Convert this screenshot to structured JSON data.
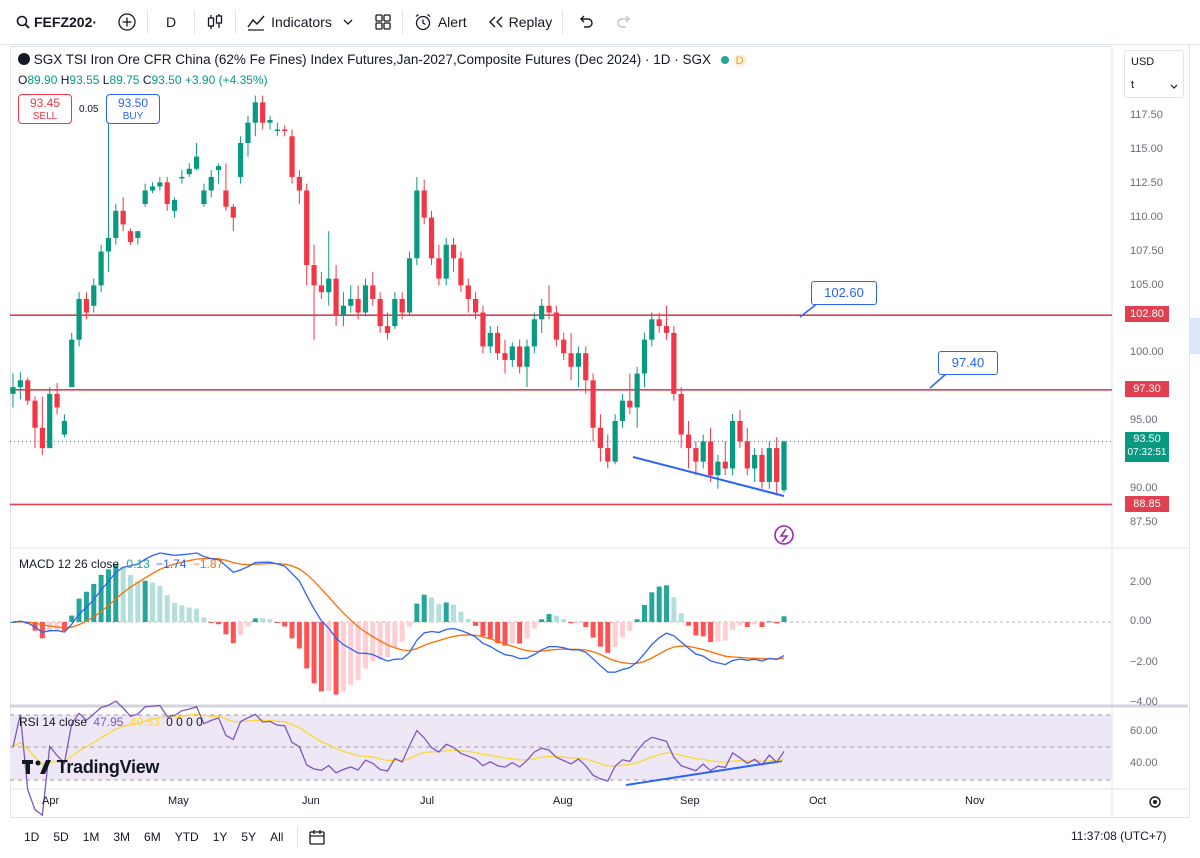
{
  "toolbar": {
    "symbol": "FEFZ202·",
    "interval": "D",
    "indicators_label": "Indicators",
    "alert_label": "Alert",
    "replay_label": "Replay"
  },
  "legend": {
    "title": "SGX TSI Iron Ore CFR China (62% Fe Fines) Index Futures,Jan-2027,Composite Futures (Dec 2024) · 1D · SGX",
    "badge": "D",
    "open_label": "O",
    "open": "89.90",
    "high_label": "H",
    "high": "93.55",
    "low_label": "L",
    "low": "89.75",
    "close_label": "C",
    "close": "93.50",
    "change": "+3.90 (+4.35%)"
  },
  "trade": {
    "sell_price": "93.45",
    "sell_label": "SELL",
    "spread": "0.05",
    "buy_price": "93.50",
    "buy_label": "BUY"
  },
  "currency": {
    "value": "USD",
    "unit": "t"
  },
  "price_axis": [
    "117.50",
    "115.00",
    "112.50",
    "110.00",
    "107.50",
    "105.00",
    "100.00",
    "95.00",
    "90.00",
    "87.50"
  ],
  "levels": [
    {
      "value": 102.8,
      "label": "102.80"
    },
    {
      "value": 97.3,
      "label": "97.30"
    },
    {
      "value": 88.85,
      "label": "88.85"
    }
  ],
  "current_price": {
    "value": 93.5,
    "label": "93.50",
    "countdown": "07:32:51"
  },
  "callouts": [
    {
      "label": "102.60"
    },
    {
      "label": "97.40"
    }
  ],
  "macd": {
    "label": "MACD 12 26 close",
    "hist": "0.13",
    "macd": "−1.74",
    "signal": "−1.87",
    "axis": [
      "2.00",
      "0.00",
      "−2.00",
      "−4.00"
    ]
  },
  "rsi": {
    "label": "RSI 14 close",
    "value": "47.95",
    "ma": "40.53",
    "extra": "0 0 0 0",
    "axis": [
      "60.00",
      "40.00"
    ]
  },
  "months": [
    "Apr",
    "May",
    "Jun",
    "Jul",
    "Aug",
    "Sep",
    "Oct",
    "Nov"
  ],
  "brand": "TradingView",
  "ranges": [
    "1D",
    "5D",
    "1M",
    "3M",
    "6M",
    "YTD",
    "1Y",
    "5Y",
    "All"
  ],
  "clock": "11:37:08 (UTC+7)",
  "colors": {
    "up": "#089981",
    "down": "#f23645",
    "accent": "#2962ff",
    "level": "#e04050"
  },
  "chart_data": {
    "type": "candlestick",
    "note_series": "daily OHLC approximations",
    "candles": [
      [
        97.0,
        98.5,
        96.0,
        97.5
      ],
      [
        97.5,
        98.6,
        96.6,
        98.0
      ],
      [
        98.0,
        98.2,
        96.2,
        96.5
      ],
      [
        96.5,
        96.8,
        93.0,
        94.5
      ],
      [
        94.5,
        96.8,
        92.5,
        93.0
      ],
      [
        93.0,
        97.5,
        93.0,
        97.0
      ],
      [
        97.0,
        97.8,
        95.5,
        96.0
      ],
      [
        94.0,
        95.5,
        93.8,
        95.0
      ],
      [
        97.5,
        101.5,
        97.5,
        101.0
      ],
      [
        101.0,
        104.5,
        100.5,
        104.0
      ],
      [
        104.0,
        104.5,
        102.5,
        103.0
      ],
      [
        103.5,
        105.5,
        103.0,
        105.0
      ],
      [
        105.0,
        108.0,
        104.5,
        107.5
      ],
      [
        107.5,
        117.5,
        106.0,
        108.5
      ],
      [
        108.5,
        111.0,
        108.0,
        110.5
      ],
      [
        110.5,
        111.5,
        109.0,
        109.5
      ],
      [
        109.0,
        109.2,
        108.0,
        108.2
      ],
      [
        108.5,
        109.0,
        108.0,
        109.0
      ],
      [
        111.0,
        112.5,
        110.8,
        112.0
      ],
      [
        112.0,
        112.6,
        111.8,
        112.3
      ],
      [
        112.3,
        113.0,
        112.0,
        112.6
      ],
      [
        112.6,
        113.0,
        110.5,
        111.0
      ],
      [
        110.5,
        111.5,
        110.0,
        111.3
      ],
      [
        113.0,
        113.5,
        112.5,
        113.0
      ],
      [
        113.2,
        114.0,
        113.0,
        113.6
      ],
      [
        113.6,
        115.5,
        113.5,
        114.5
      ],
      [
        111.0,
        112.5,
        110.8,
        112.0
      ],
      [
        112.0,
        113.5,
        111.5,
        113.0
      ],
      [
        113.5,
        114.0,
        112.5,
        113.8
      ],
      [
        112.0,
        114.0,
        110.5,
        110.8
      ],
      [
        110.8,
        111.0,
        109.0,
        110.0
      ],
      [
        113.0,
        116.0,
        112.5,
        115.5
      ],
      [
        115.5,
        117.5,
        114.5,
        117.0
      ],
      [
        117.0,
        119.0,
        116.0,
        118.5
      ],
      [
        118.5,
        119.0,
        116.5,
        117.0
      ],
      [
        117.0,
        117.5,
        116.5,
        117.2
      ],
      [
        116.5,
        117.0,
        116.0,
        116.5
      ],
      [
        116.5,
        116.8,
        116.0,
        116.4
      ],
      [
        116.0,
        116.5,
        112.5,
        113.0
      ],
      [
        113.0,
        113.5,
        111.0,
        112.0
      ],
      [
        112.0,
        112.5,
        105.0,
        106.5
      ],
      [
        106.5,
        108.0,
        101.0,
        105.0
      ],
      [
        105.0,
        106.0,
        104.0,
        104.5
      ],
      [
        104.5,
        109.0,
        103.5,
        105.5
      ],
      [
        105.5,
        106.5,
        102.0,
        102.8
      ],
      [
        102.8,
        104.5,
        102.0,
        103.5
      ],
      [
        103.5,
        105.0,
        103.0,
        104.0
      ],
      [
        104.0,
        105.0,
        102.5,
        103.0
      ],
      [
        103.0,
        105.5,
        102.8,
        105.0
      ],
      [
        105.0,
        106.0,
        103.5,
        104.0
      ],
      [
        104.0,
        104.5,
        101.5,
        102.0
      ],
      [
        102.0,
        103.0,
        101.0,
        101.5
      ],
      [
        102.0,
        104.5,
        101.8,
        104.0
      ],
      [
        104.0,
        104.5,
        102.5,
        103.0
      ],
      [
        103.0,
        107.5,
        102.8,
        107.0
      ],
      [
        107.0,
        113.0,
        106.5,
        112.0
      ],
      [
        112.0,
        112.8,
        109.5,
        110.0
      ],
      [
        110.0,
        110.5,
        106.5,
        107.0
      ],
      [
        107.0,
        108.0,
        105.0,
        105.5
      ],
      [
        105.5,
        108.5,
        105.0,
        108.0
      ],
      [
        108.0,
        108.5,
        106.0,
        107.0
      ],
      [
        107.0,
        107.5,
        104.5,
        105.0
      ],
      [
        105.0,
        105.5,
        103.0,
        104.0
      ],
      [
        104.0,
        104.5,
        102.5,
        103.0
      ],
      [
        103.0,
        103.5,
        100.0,
        100.5
      ],
      [
        100.5,
        102.0,
        100.0,
        101.5
      ],
      [
        101.5,
        102.0,
        99.5,
        100.0
      ],
      [
        100.0,
        101.0,
        98.5,
        99.5
      ],
      [
        99.5,
        100.8,
        99.0,
        100.5
      ],
      [
        100.5,
        101.0,
        98.5,
        99.0
      ],
      [
        99.0,
        101.0,
        97.5,
        100.5
      ],
      [
        100.5,
        103.0,
        100.0,
        102.5
      ],
      [
        102.5,
        104.0,
        101.5,
        103.5
      ],
      [
        103.5,
        105.0,
        102.5,
        103.0
      ],
      [
        103.0,
        103.5,
        100.5,
        101.0
      ],
      [
        101.0,
        101.5,
        99.5,
        100.0
      ],
      [
        100.0,
        101.5,
        98.0,
        99.0
      ],
      [
        99.0,
        100.5,
        97.5,
        100.0
      ],
      [
        100.0,
        100.5,
        97.0,
        98.0
      ],
      [
        98.0,
        98.5,
        93.5,
        94.5
      ],
      [
        94.5,
        95.5,
        92.0,
        93.0
      ],
      [
        93.0,
        94.0,
        91.5,
        92.0
      ],
      [
        92.0,
        95.5,
        91.8,
        95.0
      ],
      [
        95.0,
        97.0,
        94.5,
        96.5
      ],
      [
        96.5,
        98.5,
        95.5,
        96.0
      ],
      [
        96.0,
        99.0,
        94.5,
        98.5
      ],
      [
        98.5,
        101.5,
        97.5,
        101.0
      ],
      [
        101.0,
        103.0,
        100.5,
        102.5
      ],
      [
        102.5,
        103.0,
        101.5,
        102.0
      ],
      [
        102.0,
        103.5,
        101.0,
        101.5
      ],
      [
        101.5,
        102.0,
        96.5,
        97.0
      ],
      [
        97.0,
        97.5,
        93.0,
        94.0
      ],
      [
        94.0,
        95.0,
        91.5,
        93.0
      ],
      [
        93.0,
        93.5,
        91.0,
        92.0
      ],
      [
        92.0,
        94.0,
        91.5,
        93.5
      ],
      [
        93.5,
        94.5,
        90.5,
        91.0
      ],
      [
        91.0,
        92.5,
        90.0,
        92.0
      ],
      [
        92.0,
        93.5,
        91.0,
        91.5
      ],
      [
        91.5,
        95.5,
        91.0,
        95.0
      ],
      [
        95.0,
        95.8,
        93.0,
        93.5
      ],
      [
        93.5,
        94.5,
        91.0,
        91.5
      ],
      [
        91.5,
        93.0,
        90.5,
        92.5
      ],
      [
        92.5,
        93.0,
        90.0,
        90.5
      ],
      [
        90.5,
        93.5,
        90.0,
        93.0
      ],
      [
        93.0,
        93.8,
        89.5,
        90.5
      ],
      [
        89.9,
        93.55,
        89.75,
        93.5
      ]
    ],
    "months": [
      "Apr",
      "May",
      "Jun",
      "Jul",
      "Aug",
      "Sep",
      "Oct",
      "Nov"
    ],
    "ylim": [
      86.5,
      120
    ]
  }
}
